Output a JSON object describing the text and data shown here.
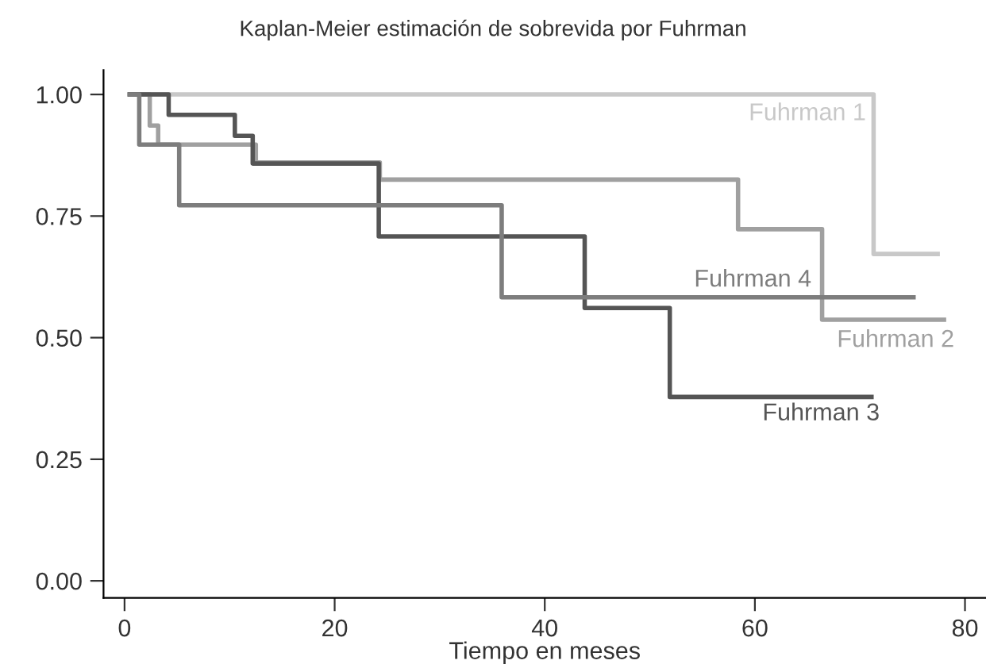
{
  "chart_data": {
    "type": "step",
    "title": "Kaplan-Meier estimación de sobrevida por Fuhrman",
    "xlabel": "Tiempo en meses",
    "xlim": [
      -2,
      82
    ],
    "xticks": [
      0,
      20,
      40,
      60,
      80
    ],
    "ylim": [
      -0.035,
      1.05
    ],
    "yticks": [
      {
        "value": 0,
        "label": "0.00"
      },
      {
        "value": 0.25,
        "label": "0.25"
      },
      {
        "value": 0.5,
        "label": "0.50"
      },
      {
        "value": 0.75,
        "label": "0.75"
      },
      {
        "value": 1,
        "label": "1.00"
      }
    ],
    "grid": false,
    "legend": false,
    "line_style": "solid",
    "marker": "none",
    "series": [
      {
        "name": "Fuhrman 1",
        "color": "#c8c8c8",
        "x": [
          0.5,
          71.3,
          77.4
        ],
        "values": [
          1.0,
          0.672,
          0.672
        ]
      },
      {
        "name": "Fuhrman 2",
        "color": "#a0a0a0",
        "x": [
          0.5,
          2.4,
          3.2,
          12.5,
          24.3,
          58.4,
          66.4,
          78.0
        ],
        "values": [
          1.0,
          0.936,
          0.897,
          0.86,
          0.825,
          0.723,
          0.537,
          0.537
        ]
      },
      {
        "name": "Fuhrman 3",
        "color": "#555555",
        "x": [
          0.5,
          4.2,
          10.5,
          12.2,
          24.2,
          43.8,
          51.9,
          71.1
        ],
        "values": [
          1.0,
          0.958,
          0.915,
          0.858,
          0.708,
          0.561,
          0.378,
          0.378
        ]
      },
      {
        "name": "Fuhrman 4",
        "color": "#7d7d7d",
        "x": [
          0.5,
          1.4,
          5.2,
          35.9,
          75.1
        ],
        "values": [
          1.0,
          0.897,
          0.772,
          0.583,
          0.583
        ]
      }
    ]
  }
}
